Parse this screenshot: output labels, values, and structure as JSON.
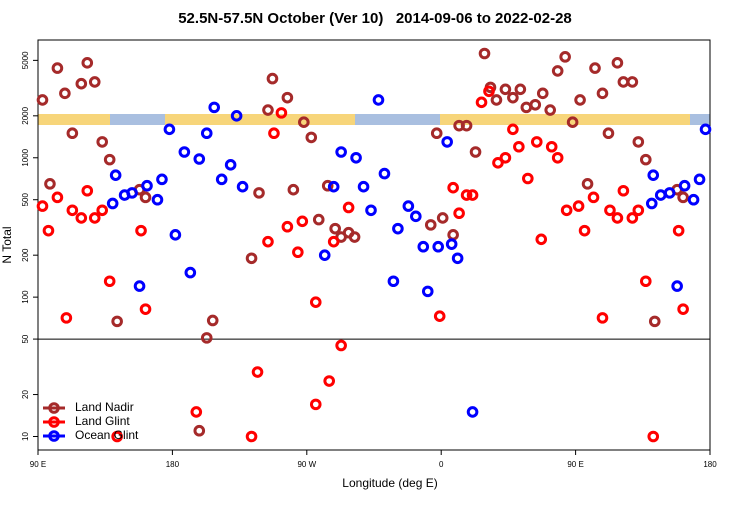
{
  "chart_data": {
    "type": "scatter",
    "title": "52.5N-57.5N October (Ver 10)   2014-09-06 to 2022-02-28",
    "x_label": "Longitude (deg E)",
    "y_label": "N Total",
    "log_y": true,
    "legend": "bottom-left",
    "hline": 50,
    "xlim": [
      90,
      540
    ],
    "xticks": [
      {
        "value": 90,
        "label": "90 E"
      },
      {
        "value": 180,
        "label": "180"
      },
      {
        "value": 270,
        "label": "90 W"
      },
      {
        "value": 360,
        "label": "0"
      },
      {
        "value": 450,
        "label": "90 E"
      },
      {
        "value": 540,
        "label": "180"
      }
    ],
    "ylim": [
      8,
      7000
    ],
    "yticks": [
      10,
      20,
      50,
      100,
      200,
      500,
      1000,
      2000,
      5000
    ],
    "series": [
      {
        "name": "Land Nadir",
        "color": "#a52a2a",
        "x": [
          93,
          98,
          103,
          108,
          113,
          119,
          123,
          128,
          133,
          138,
          143,
          158,
          162,
          198,
          203,
          207,
          233,
          238,
          244,
          247,
          257,
          261,
          268,
          273,
          278,
          284,
          289,
          293,
          298,
          302,
          353,
          357,
          361,
          368,
          372,
          377,
          383,
          389,
          393,
          397,
          403,
          408,
          413,
          417,
          423,
          428,
          433,
          438,
          443,
          448,
          453,
          458,
          463,
          468,
          472,
          478,
          482,
          488,
          492,
          497,
          503,
          518,
          522
        ],
        "values": [
          2600,
          650,
          4400,
          2900,
          1500,
          3400,
          4800,
          3500,
          1300,
          970,
          67,
          590,
          520,
          11,
          51,
          68,
          190,
          560,
          2200,
          3700,
          2700,
          590,
          1800,
          1400,
          360,
          630,
          310,
          270,
          290,
          270,
          330,
          1500,
          370,
          280,
          1700,
          1700,
          1100,
          5600,
          3200,
          2600,
          3100,
          2700,
          3100,
          2300,
          2400,
          2900,
          2200,
          4200,
          5300,
          1800,
          2600,
          650,
          4400,
          2900,
          1500,
          4800,
          3500,
          3500,
          1300,
          970,
          67,
          590,
          520
        ]
      },
      {
        "name": "Land Glint",
        "color": "#ff0000",
        "x": [
          93,
          97,
          103,
          109,
          113,
          119,
          123,
          128,
          133,
          138,
          143,
          159,
          162,
          196,
          233,
          237,
          244,
          248,
          253,
          257,
          264,
          267,
          276,
          276,
          285,
          288,
          293,
          298,
          359,
          368,
          372,
          377,
          381,
          387,
          392,
          398,
          403,
          408,
          412,
          418,
          424,
          427,
          434,
          438,
          444,
          452,
          456,
          462,
          468,
          473,
          478,
          482,
          488,
          492,
          497,
          502,
          519,
          522
        ],
        "values": [
          450,
          300,
          520,
          71,
          420,
          370,
          580,
          370,
          420,
          130,
          10,
          300,
          82,
          15,
          10,
          29,
          250,
          1500,
          2100,
          320,
          210,
          350,
          92,
          17,
          25,
          250,
          45,
          440,
          73,
          610,
          400,
          540,
          540,
          2500,
          3000,
          920,
          1000,
          1600,
          1200,
          710,
          1300,
          260,
          1200,
          1000,
          420,
          450,
          300,
          520,
          71,
          420,
          370,
          580,
          370,
          420,
          130,
          10,
          300,
          82
        ]
      },
      {
        "name": "Ocean Glint",
        "color": "#0000ff",
        "x": [
          140,
          142,
          148,
          153,
          158,
          163,
          170,
          173,
          178,
          182,
          188,
          192,
          198,
          203,
          208,
          213,
          219,
          223,
          227,
          282,
          288,
          293,
          303,
          308,
          313,
          318,
          322,
          328,
          331,
          338,
          343,
          348,
          351,
          358,
          364,
          367,
          371,
          381,
          501,
          502,
          507,
          513,
          518,
          523,
          529,
          533,
          537
        ],
        "values": [
          470,
          750,
          540,
          560,
          120,
          630,
          500,
          700,
          1600,
          280,
          1100,
          150,
          980,
          1500,
          2300,
          700,
          890,
          2000,
          620,
          200,
          620,
          1100,
          1000,
          620,
          420,
          2600,
          770,
          130,
          310,
          450,
          380,
          230,
          110,
          230,
          1300,
          240,
          190,
          15,
          470,
          750,
          540,
          560,
          120,
          630,
          500,
          700,
          1600
        ]
      }
    ]
  }
}
